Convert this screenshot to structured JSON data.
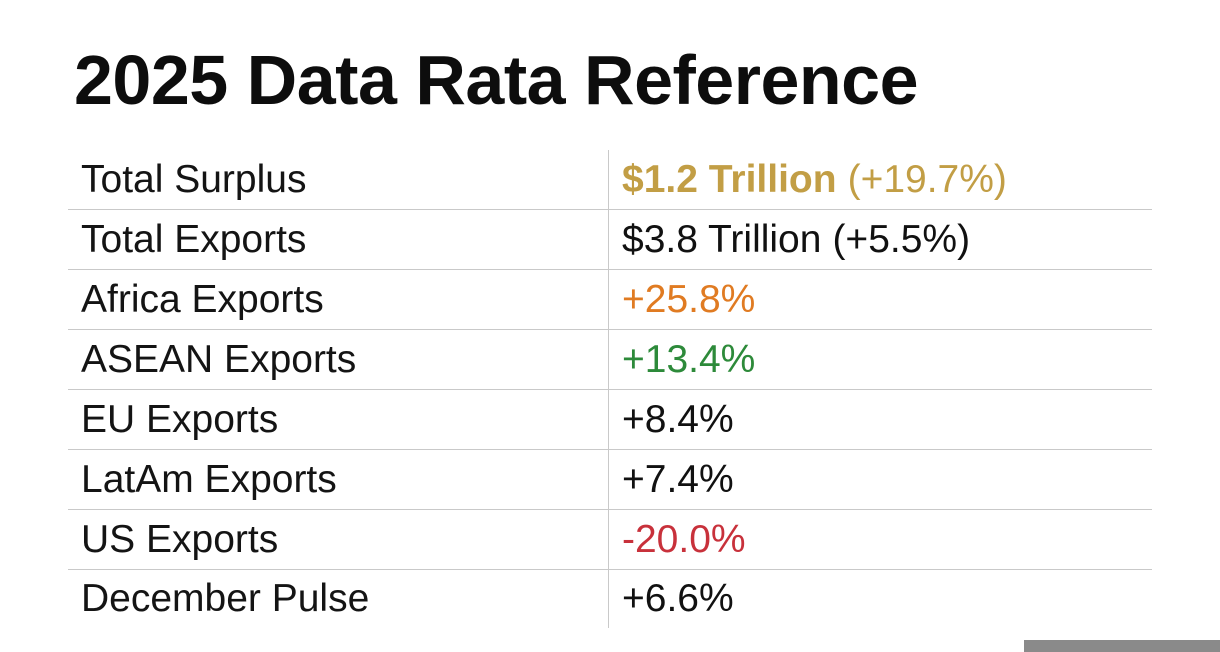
{
  "title": "2025 Data Rata Reference",
  "colors": {
    "gold": "#c29e45",
    "black": "#111111",
    "orange": "#e07b22",
    "green": "#2d8a3a",
    "red": "#c8313b",
    "divider": "#c9c9c9"
  },
  "rows": [
    {
      "label": "Total Surplus",
      "value_main": "$1.2 Trillion",
      "value_change": "(+19.7%)",
      "color": "gold"
    },
    {
      "label": "Total Exports",
      "value_main": "$3.8 Trillion",
      "value_change": "(+5.5%)",
      "color": "black"
    },
    {
      "label": "Africa Exports",
      "value": "+25.8%",
      "color": "orange"
    },
    {
      "label": "ASEAN Exports",
      "value": "+13.4%",
      "color": "green"
    },
    {
      "label": "EU Exports",
      "value": "+8.4%",
      "color": "black"
    },
    {
      "label": "LatAm Exports",
      "value": "+7.4%",
      "color": "black"
    },
    {
      "label": "US Exports",
      "value": "-20.0%",
      "color": "red"
    },
    {
      "label": "December Pulse",
      "value": "+6.6%",
      "color": "black"
    }
  ]
}
